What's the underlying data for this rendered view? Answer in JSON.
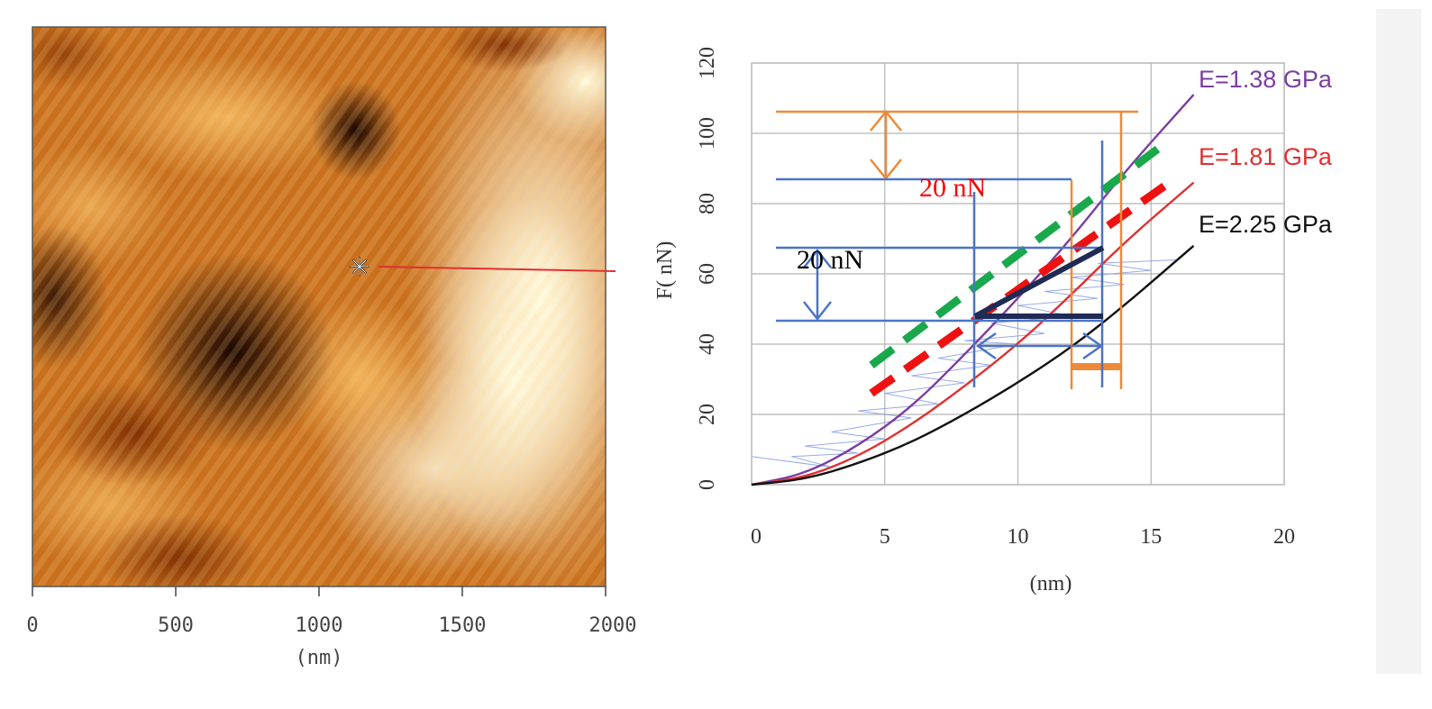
{
  "afm_image": {
    "x_ticks": [
      "0",
      "500",
      "1000",
      "1500",
      "2000"
    ],
    "x_unit": "(nm)",
    "marker": "✳"
  },
  "chart_data": {
    "type": "line",
    "ylabel": "F( nN)",
    "xlabel": "(nm)",
    "xlim": [
      0,
      20
    ],
    "ylim": [
      0,
      120
    ],
    "x_ticks": [
      "0",
      "5",
      "10",
      "15",
      "20"
    ],
    "y_ticks": [
      "0",
      "20",
      "40",
      "60",
      "80",
      "100",
      "120"
    ],
    "grid": true,
    "series": [
      {
        "name": "E=1.38 GPa",
        "color": "#7a3ea0",
        "x": [
          0,
          2,
          4,
          6,
          8,
          10,
          12,
          14,
          16.6
        ],
        "y": [
          0,
          3,
          11,
          22,
          37,
          53,
          70,
          89,
          111
        ]
      },
      {
        "name": "E=1.81 GPa",
        "color": "#e03030",
        "x": [
          0,
          2,
          4,
          6,
          8,
          10,
          12,
          14,
          16.6
        ],
        "y": [
          0,
          2,
          8,
          17,
          28,
          40,
          54,
          69,
          86
        ]
      },
      {
        "name": "E=2.25 GPa",
        "color": "#111111",
        "x": [
          0,
          2,
          4,
          6,
          8,
          10,
          12,
          14,
          16.6
        ],
        "y": [
          0,
          1.5,
          6,
          12,
          20,
          29,
          39,
          51,
          68
        ]
      }
    ],
    "fit_lines": [
      {
        "color": "#1aa84c",
        "style": "dashed",
        "x": [
          4.5,
          15.5
        ],
        "y": [
          34,
          97
        ]
      },
      {
        "color": "#ee1111",
        "style": "dashed",
        "x": [
          4.5,
          15.5
        ],
        "y": [
          26,
          85
        ]
      }
    ],
    "annotations": [
      {
        "text": "20 nN",
        "color": "#ff0000"
      },
      {
        "text": "20 nN",
        "color": "#000000"
      }
    ]
  }
}
